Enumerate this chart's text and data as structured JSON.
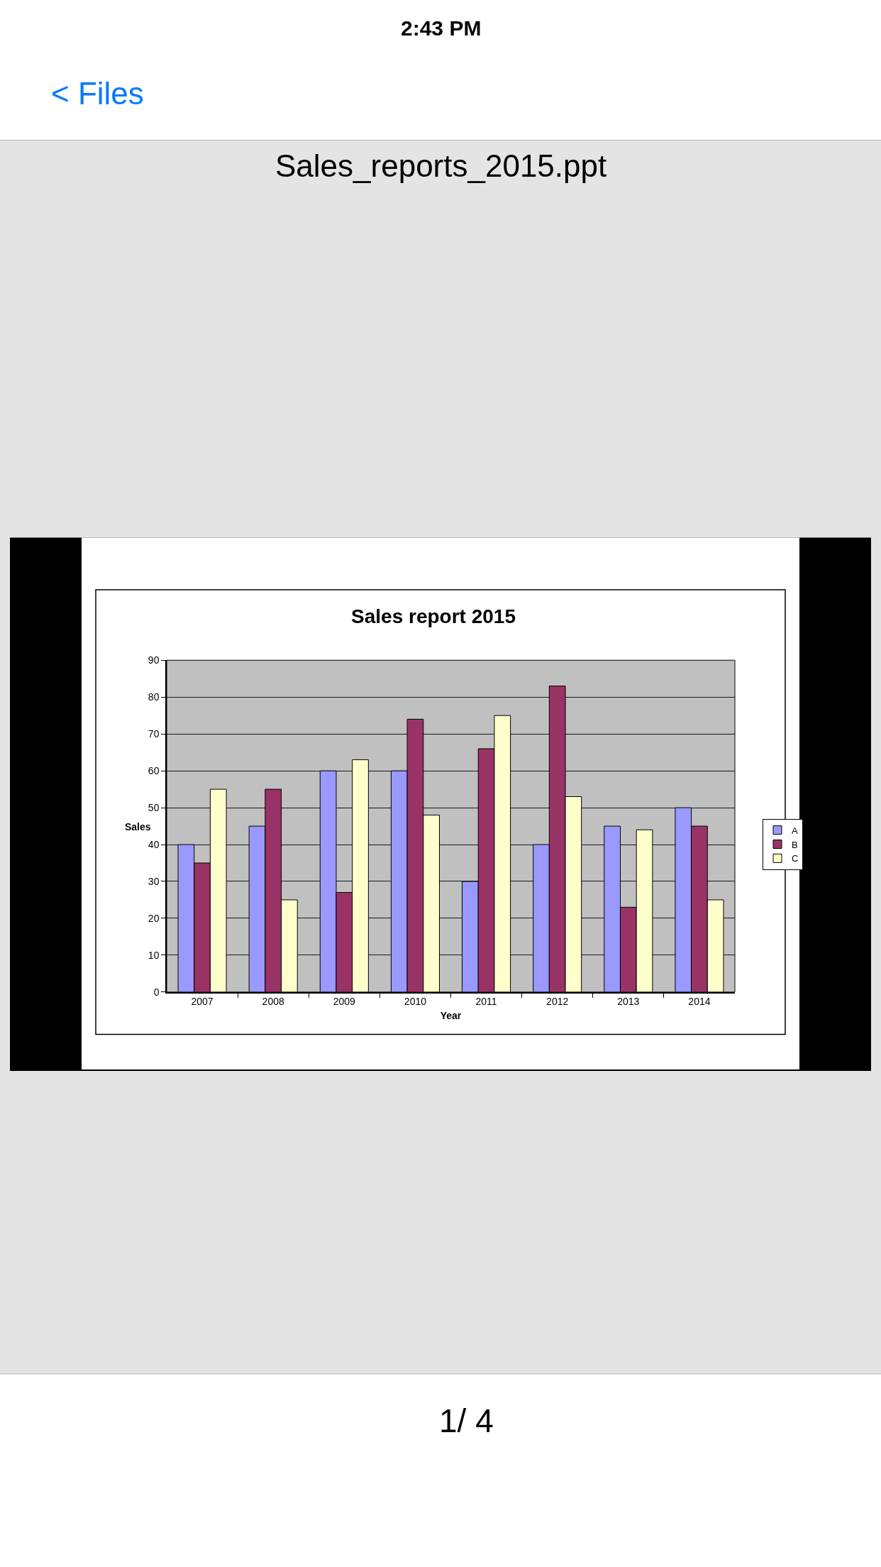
{
  "chart_data": {
    "type": "bar",
    "title": "Sales report 2015",
    "xlabel": "Year",
    "ylabel": "Sales",
    "categories": [
      "2007",
      "2008",
      "2009",
      "2010",
      "2011",
      "2012",
      "2013",
      "2014"
    ],
    "series": [
      {
        "name": "A",
        "color": "#9999ff",
        "values": [
          40,
          45,
          60,
          60,
          30,
          40,
          45,
          50
        ]
      },
      {
        "name": "B",
        "color": "#993366",
        "values": [
          35,
          55,
          27,
          74,
          66,
          83,
          23,
          45
        ]
      },
      {
        "name": "C",
        "color": "#ffffcc",
        "values": [
          55,
          25,
          63,
          48,
          75,
          53,
          44,
          25
        ]
      }
    ],
    "ylim": [
      0,
      90
    ],
    "yticks": [
      0,
      10,
      20,
      30,
      40,
      50,
      60,
      70,
      80,
      90
    ],
    "grid": "y",
    "legend": "right",
    "annotations": [
      "2:43 PM",
      "< Files",
      "Sales_reports_2015.ppt",
      "1/ 4"
    ]
  }
}
